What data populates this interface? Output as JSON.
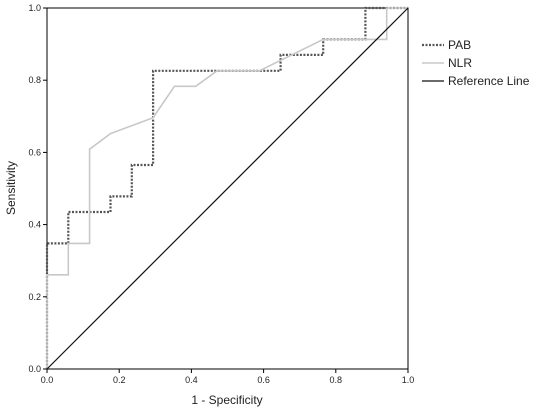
{
  "chart_data": {
    "type": "line",
    "title": "",
    "xlabel": "1 - Specificity",
    "ylabel": "Sensitivity",
    "xlim": [
      0,
      1
    ],
    "ylim": [
      0,
      1
    ],
    "xticks": [
      "0.0",
      "0.2",
      "0.4",
      "0.6",
      "0.8",
      "1.0"
    ],
    "yticks": [
      "0.0",
      "0.2",
      "0.4",
      "0.6",
      "0.8",
      "1.0"
    ],
    "grid": false,
    "legend_position": "right",
    "series": [
      {
        "name": "PAB",
        "style": "dotted",
        "color": "#555555",
        "points": [
          [
            0,
            0
          ],
          [
            0,
            0.348
          ],
          [
            0.059,
            0.348
          ],
          [
            0.059,
            0.435
          ],
          [
            0.176,
            0.435
          ],
          [
            0.176,
            0.478
          ],
          [
            0.235,
            0.478
          ],
          [
            0.235,
            0.565
          ],
          [
            0.294,
            0.565
          ],
          [
            0.294,
            0.826
          ],
          [
            0.647,
            0.826
          ],
          [
            0.647,
            0.87
          ],
          [
            0.765,
            0.87
          ],
          [
            0.765,
            0.913
          ],
          [
            0.882,
            0.913
          ],
          [
            0.882,
            1.0
          ],
          [
            1.0,
            1.0
          ]
        ]
      },
      {
        "name": "NLR",
        "style": "solid",
        "color": "#c8c8c8",
        "points": [
          [
            0,
            0
          ],
          [
            0,
            0.261
          ],
          [
            0.059,
            0.261
          ],
          [
            0.059,
            0.348
          ],
          [
            0.118,
            0.348
          ],
          [
            0.118,
            0.609
          ],
          [
            0.176,
            0.652
          ],
          [
            0.294,
            0.696
          ],
          [
            0.353,
            0.783
          ],
          [
            0.412,
            0.783
          ],
          [
            0.471,
            0.826
          ],
          [
            0.588,
            0.826
          ],
          [
            0.765,
            0.913
          ],
          [
            0.941,
            0.913
          ],
          [
            0.941,
            1.0
          ],
          [
            1.0,
            1.0
          ]
        ]
      },
      {
        "name": "Reference Line",
        "style": "solid",
        "color": "#111111",
        "points": [
          [
            0,
            0
          ],
          [
            1,
            1
          ]
        ]
      }
    ]
  }
}
